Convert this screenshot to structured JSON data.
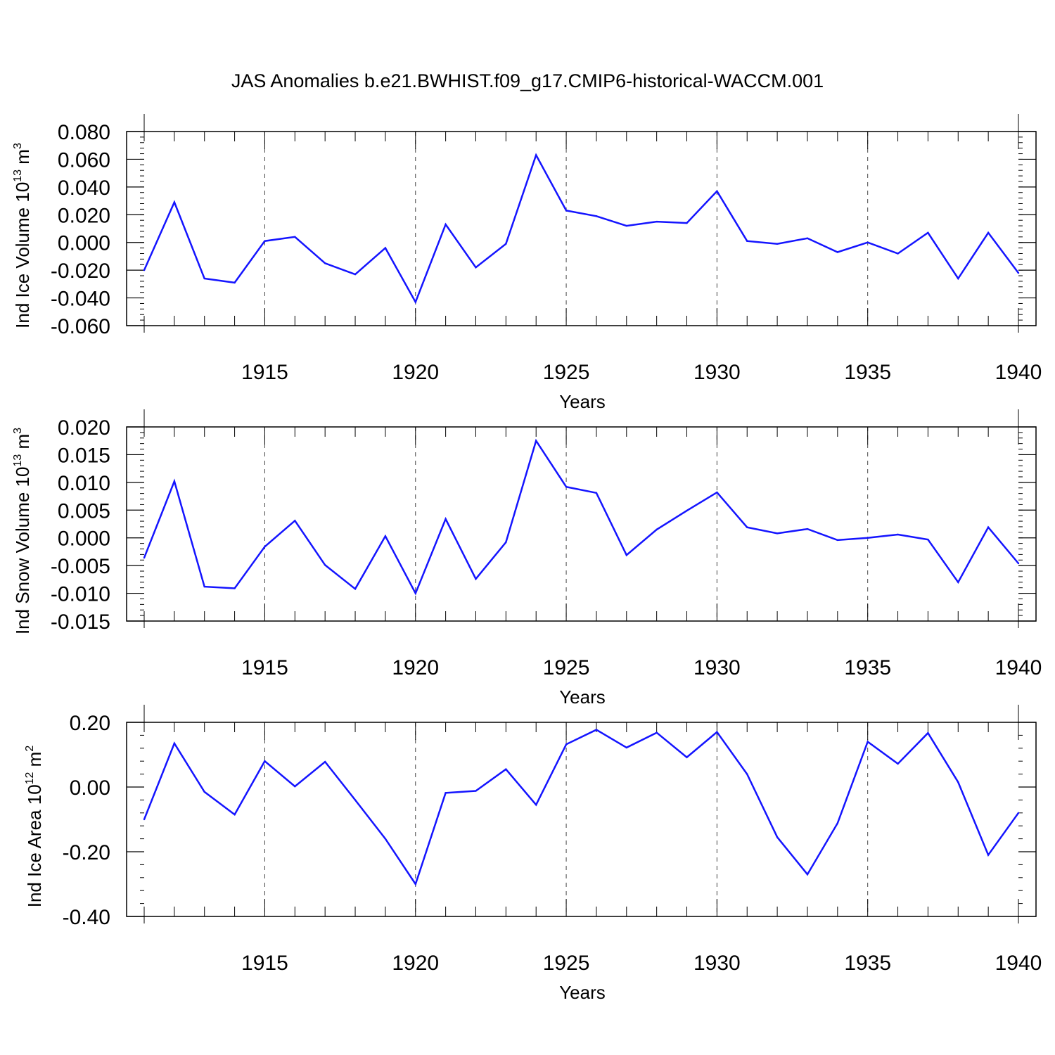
{
  "title": "JAS Anomalies b.e21.BWHIST.f09_g17.CMIP6-historical-WACCM.001",
  "line_color": "#1414ff",
  "chart_data": [
    {
      "type": "line",
      "ylabel_main": "Ind Ice Volume 10",
      "ylabel_exp": "13",
      "ylabel_unit": "m",
      "ylabel_unit_exp": "3",
      "xlabel": "Years",
      "xlim": [
        1911,
        1940
      ],
      "ylim": [
        -0.06,
        0.08
      ],
      "yticks": [
        -0.06,
        -0.04,
        -0.02,
        0.0,
        0.02,
        0.04,
        0.06,
        0.08
      ],
      "ytick_labels": [
        "-0.060",
        "-0.040",
        "-0.020",
        "0.000",
        "0.020",
        "0.040",
        "0.060",
        "0.080"
      ],
      "yminor_step": 0.004,
      "xticks": [
        1915,
        1920,
        1925,
        1930,
        1935,
        1940
      ],
      "xtick_labels": [
        "1915",
        "1920",
        "1925",
        "1930",
        "1935",
        "1940"
      ],
      "grid": "dashed vertical at major x ticks",
      "x": [
        1911,
        1912,
        1913,
        1914,
        1915,
        1916,
        1917,
        1918,
        1919,
        1920,
        1921,
        1922,
        1923,
        1924,
        1925,
        1926,
        1927,
        1928,
        1929,
        1930,
        1931,
        1932,
        1933,
        1934,
        1935,
        1936,
        1937,
        1938,
        1939,
        1940
      ],
      "y": [
        -0.02,
        0.029,
        -0.026,
        -0.029,
        0.001,
        0.004,
        -0.015,
        -0.023,
        -0.004,
        -0.043,
        0.013,
        -0.018,
        -0.001,
        0.063,
        0.023,
        0.019,
        0.012,
        0.015,
        0.014,
        0.037,
        0.001,
        -0.001,
        0.003,
        -0.007,
        0.0,
        -0.008,
        0.007,
        -0.026,
        0.007,
        -0.022
      ]
    },
    {
      "type": "line",
      "ylabel_main": "Ind Snow Volume 10",
      "ylabel_exp": "13",
      "ylabel_unit": "m",
      "ylabel_unit_exp": "3",
      "xlabel": "Years",
      "xlim": [
        1911,
        1940
      ],
      "ylim": [
        -0.015,
        0.02
      ],
      "yticks": [
        -0.015,
        -0.01,
        -0.005,
        0.0,
        0.005,
        0.01,
        0.015,
        0.02
      ],
      "ytick_labels": [
        "-0.015",
        "-0.010",
        "-0.005",
        "0.000",
        "0.005",
        "0.010",
        "0.015",
        "0.020"
      ],
      "yminor_step": 0.001,
      "xticks": [
        1915,
        1920,
        1925,
        1930,
        1935,
        1940
      ],
      "xtick_labels": [
        "1915",
        "1920",
        "1925",
        "1930",
        "1935",
        "1940"
      ],
      "grid": "dashed vertical at major x ticks",
      "x": [
        1911,
        1912,
        1913,
        1914,
        1915,
        1916,
        1917,
        1918,
        1919,
        1920,
        1921,
        1922,
        1923,
        1924,
        1925,
        1926,
        1927,
        1928,
        1929,
        1930,
        1931,
        1932,
        1933,
        1934,
        1935,
        1936,
        1937,
        1938,
        1939,
        1940
      ],
      "y": [
        -0.0036,
        0.0102,
        -0.0088,
        -0.0091,
        -0.0016,
        0.0031,
        -0.0049,
        -0.0092,
        0.0003,
        -0.01,
        0.0034,
        -0.0074,
        -0.0008,
        0.0175,
        0.0092,
        0.0081,
        -0.0031,
        0.0015,
        0.0049,
        0.0082,
        0.0019,
        0.0008,
        0.0016,
        -0.0004,
        0.0,
        0.0006,
        -0.0003,
        -0.008,
        0.0019,
        -0.0046
      ]
    },
    {
      "type": "line",
      "ylabel_main": "Ind Ice Area 10",
      "ylabel_exp": "12",
      "ylabel_unit": "m",
      "ylabel_unit_exp": "2",
      "xlabel": "Years",
      "xlim": [
        1911,
        1940
      ],
      "ylim": [
        -0.4,
        0.2
      ],
      "yticks": [
        -0.4,
        -0.2,
        0.0,
        0.2
      ],
      "ytick_labels": [
        "-0.40",
        "-0.20",
        "0.00",
        "0.20"
      ],
      "yminor_step": 0.04,
      "xticks": [
        1915,
        1920,
        1925,
        1930,
        1935,
        1940
      ],
      "xtick_labels": [
        "1915",
        "1920",
        "1925",
        "1930",
        "1935",
        "1940"
      ],
      "grid": "dashed vertical at major x ticks",
      "x": [
        1911,
        1912,
        1913,
        1914,
        1915,
        1916,
        1917,
        1918,
        1919,
        1920,
        1921,
        1922,
        1923,
        1924,
        1925,
        1926,
        1927,
        1928,
        1929,
        1930,
        1931,
        1932,
        1933,
        1934,
        1935,
        1936,
        1937,
        1938,
        1939,
        1940
      ],
      "y": [
        -0.1,
        0.135,
        -0.015,
        -0.085,
        0.08,
        0.002,
        0.078,
        -0.04,
        -0.16,
        -0.3,
        -0.018,
        -0.012,
        0.055,
        -0.055,
        0.132,
        0.177,
        0.122,
        0.168,
        0.092,
        0.17,
        0.04,
        -0.155,
        -0.27,
        -0.112,
        0.14,
        0.072,
        0.167,
        0.015,
        -0.21,
        -0.08
      ]
    }
  ]
}
